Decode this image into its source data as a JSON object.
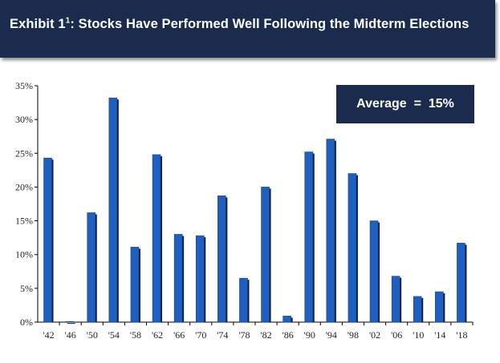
{
  "header": {
    "title_main": "Exhibit 1",
    "title_sup": "1",
    "title_rest": ": Stocks Have Performed Well Following the Midterm Elections"
  },
  "annotation": {
    "average_label": "Average  =  15%"
  },
  "colors": {
    "header_bg": "#1b2b4d",
    "bar_fill": "#1f5fc0",
    "bar_shadow": "#0d1f45"
  },
  "chart_data": {
    "type": "bar",
    "title": "",
    "xlabel": "",
    "ylabel": "",
    "categories": [
      "'42",
      "'46",
      "'50",
      "'54",
      "'58",
      "'62",
      "'66",
      "'70",
      "'74",
      "'78",
      "'82",
      "'86",
      "'90",
      "'94",
      "'98",
      "'02",
      "'06",
      "'10",
      "'14",
      "'18"
    ],
    "values": [
      24.3,
      0.1,
      16.2,
      33.2,
      11.1,
      24.8,
      13.0,
      12.8,
      18.7,
      6.5,
      20.0,
      0.9,
      25.2,
      27.1,
      22.0,
      15.0,
      6.8,
      3.8,
      4.5,
      11.7
    ],
    "ylim": [
      0,
      35
    ],
    "yticks": [
      0,
      5,
      10,
      15,
      20,
      25,
      30,
      35
    ],
    "ytick_labels": [
      "0%",
      "5%",
      "10%",
      "15%",
      "20%",
      "25%",
      "30%",
      "35%"
    ],
    "grid": false,
    "legend": "none"
  }
}
